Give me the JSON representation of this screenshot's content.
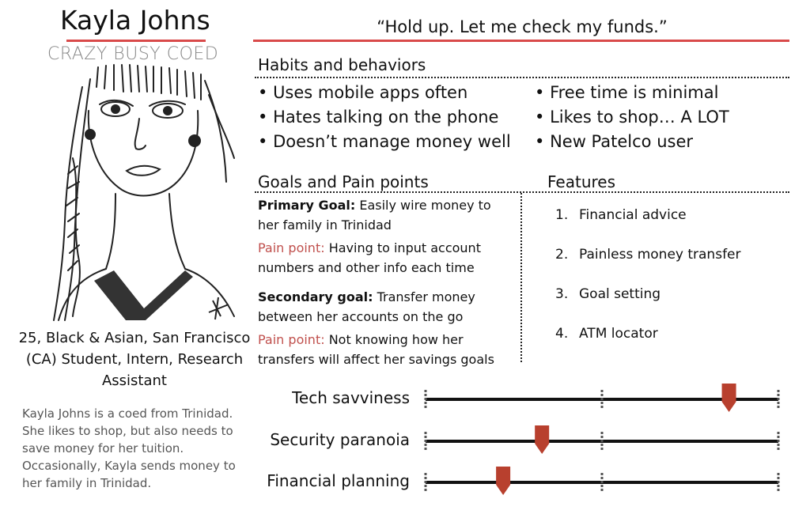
{
  "persona": {
    "name": "Kayla Johns",
    "subtitle": "CRAZY BUSY COED",
    "quote": "“Hold up. Let me check my funds.”",
    "demographics": "25, Black & Asian, San Francisco (CA) Student, Intern, Research Assistant",
    "bio": "Kayla Johns is a coed from Trinidad. She likes to shop, but also needs to save money for her tuition. Occasionally, Kayla sends money to her family in Trinidad."
  },
  "habits": {
    "title": "Habits and behaviors",
    "left": [
      "Uses mobile apps often",
      "Hates talking on the phone",
      "Doesn’t manage money well"
    ],
    "right": [
      "Free time is minimal",
      "Likes to shop… A LOT",
      "New Patelco user"
    ]
  },
  "goals": {
    "title": "Goals and Pain points",
    "primary_label": "Primary Goal:",
    "primary_text": " Easily wire money to her family in Trinidad",
    "pain1_label": "Pain point:",
    "pain1_text": " Having to input account numbers and other info each time",
    "secondary_label": "Secondary goal:",
    "secondary_text": " Transfer money between her accounts on the go",
    "pain2_label": "Pain point:",
    "pain2_text": " Not knowing how her transfers will affect her savings goals"
  },
  "features": {
    "title": "Features",
    "items": [
      {
        "num": "1.",
        "label": "Financial advice"
      },
      {
        "num": "2.",
        "label": "Painless money transfer"
      },
      {
        "num": "3.",
        "label": "Goal setting"
      },
      {
        "num": "4.",
        "label": "ATM locator"
      }
    ]
  },
  "scales": [
    {
      "label": "Tech savviness",
      "level": 0.86
    },
    {
      "label": "Security paranoia",
      "level": 0.33
    },
    {
      "label": "Financial planning",
      "level": 0.22
    }
  ],
  "colors": {
    "accent": "#d94a4a",
    "pain_text": "#c0504d",
    "marker": "#b8402e"
  }
}
